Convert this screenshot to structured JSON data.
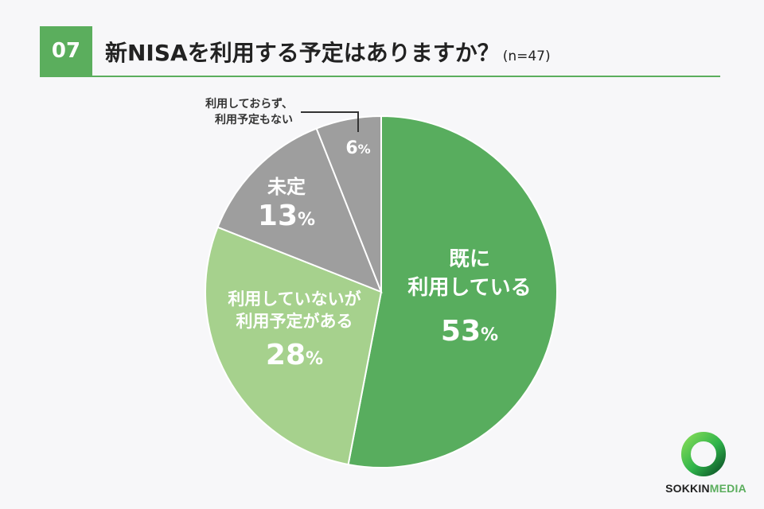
{
  "header": {
    "number": "07",
    "title": "新NISAを利用する予定はありますか？",
    "sample": "(n=47)"
  },
  "chart_data": {
    "type": "pie",
    "slices": [
      {
        "label": [
          "既に",
          "利用している"
        ],
        "value": 53,
        "display": "53",
        "color": "#58ad5e"
      },
      {
        "label": [
          "利用していないが",
          "利用予定がある"
        ],
        "value": 28,
        "display": "28",
        "color": "#a6d18d"
      },
      {
        "label": [
          "未定"
        ],
        "value": 13,
        "display": "13",
        "color": "#9e9e9e"
      },
      {
        "label": [
          "利用しておらず、",
          "利用予定もない"
        ],
        "value": 6,
        "display": "6",
        "color": "#9e9e9e"
      }
    ],
    "unit": "%"
  },
  "logo": {
    "part1": "SOKKIN",
    "part2": "MEDIA",
    "colors": {
      "ring": "#2fb34a",
      "ring_dark": "#0f5a2a"
    }
  }
}
